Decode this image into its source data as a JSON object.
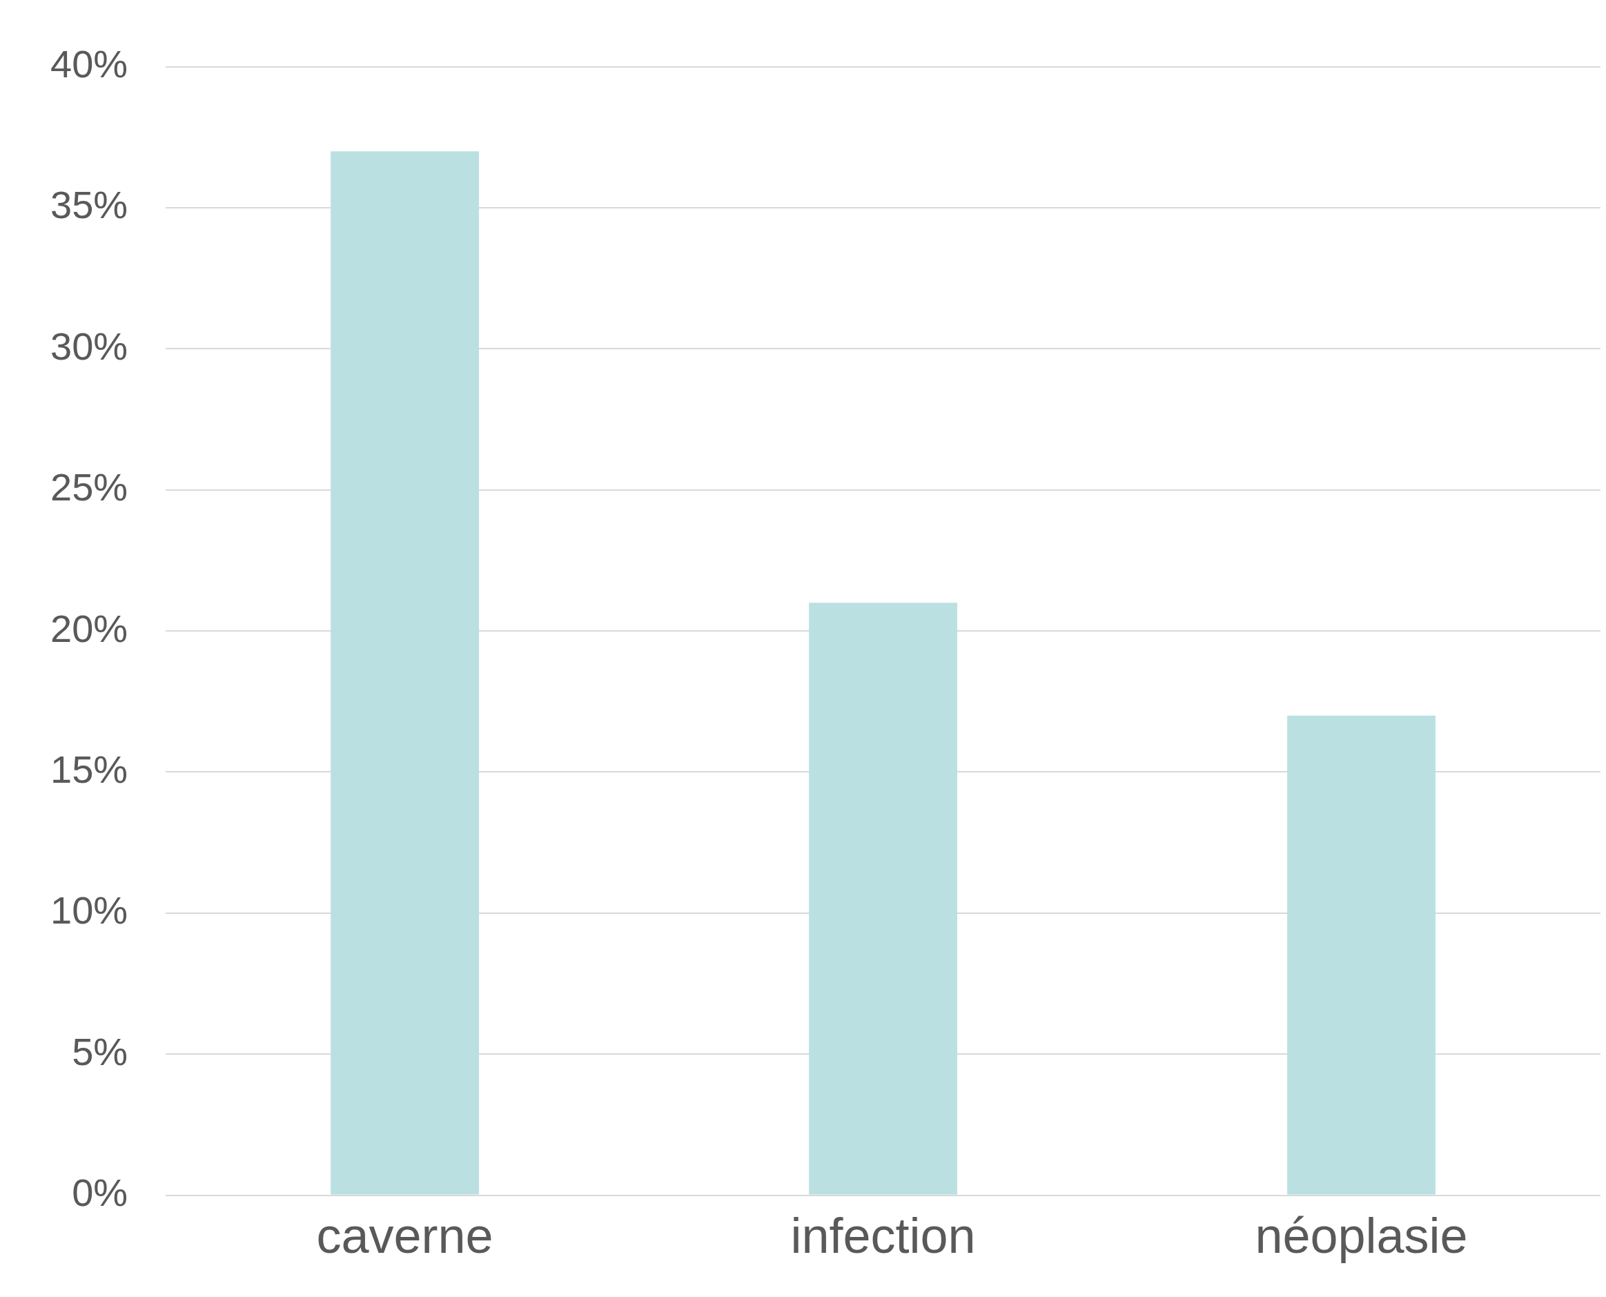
{
  "chart_data": {
    "type": "bar",
    "categories": [
      "caverne",
      "infection",
      "néoplasie"
    ],
    "values": [
      37,
      21,
      17
    ],
    "color": "#bae0e2",
    "ylim": [
      0,
      40
    ],
    "yticks": [
      {
        "value": 0,
        "label": "0%"
      },
      {
        "value": 5,
        "label": "5%"
      },
      {
        "value": 10,
        "label": "10%"
      },
      {
        "value": 15,
        "label": "15%"
      },
      {
        "value": 20,
        "label": "20%"
      },
      {
        "value": 25,
        "label": "25%"
      },
      {
        "value": 30,
        "label": "30%"
      },
      {
        "value": 35,
        "label": "35%"
      },
      {
        "value": 40,
        "label": "40%"
      }
    ],
    "grid": "y",
    "legend": false
  }
}
